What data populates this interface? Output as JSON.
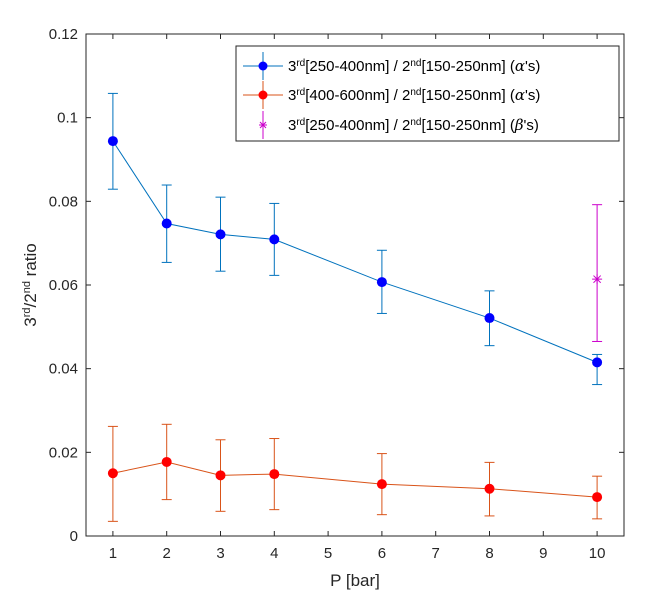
{
  "chart_data": {
    "type": "line",
    "xlabel": "P [bar]",
    "ylabel": {
      "base1": "3",
      "sup1": "rd",
      "mid": "/2",
      "sup2": "nd",
      "tail": " ratio"
    },
    "xlim": [
      0.5,
      10.5
    ],
    "ylim": [
      0,
      0.12
    ],
    "xticks": [
      1,
      2,
      3,
      4,
      5,
      6,
      7,
      8,
      9,
      10
    ],
    "yticks": [
      0,
      0.02,
      0.04,
      0.06,
      0.08,
      0.1,
      0.12
    ],
    "ytick_labels": [
      "0",
      "0.02",
      "0.04",
      "0.06",
      "0.08",
      "0.1",
      "0.12"
    ],
    "grid": false,
    "legend_position": "top-right",
    "series": [
      {
        "name": "3rd[250-400nm] / 2nd[150-250nm] (α's)",
        "legend_parts": {
          "a": "3",
          "b": "rd",
          "c": "[250-400nm] / 2",
          "d": "nd",
          "e": "[150-250nm] (",
          "greek": "α",
          "f": "'s)"
        },
        "line_color": "#0072BD",
        "marker_color": "#0000FF",
        "marker": "circle",
        "x": [
          1,
          2,
          3,
          4,
          6,
          8,
          10
        ],
        "y": [
          0.0944,
          0.0747,
          0.0721,
          0.0709,
          0.0607,
          0.0521,
          0.0415
        ],
        "err_low": [
          0.0829,
          0.0654,
          0.0633,
          0.0623,
          0.0532,
          0.0455,
          0.0362
        ],
        "err_high": [
          0.1058,
          0.0839,
          0.081,
          0.0795,
          0.0683,
          0.0586,
          0.0434
        ]
      },
      {
        "name": "3rd[400-600nm] / 2nd[150-250nm] (α's)",
        "legend_parts": {
          "a": "3",
          "b": "rd",
          "c": "[400-600nm] / 2",
          "d": "nd",
          "e": "[150-250nm] (",
          "greek": "α",
          "f": "'s)"
        },
        "line_color": "#D95319",
        "marker_color": "#FF0000",
        "marker": "circle",
        "x": [
          1,
          2,
          3,
          4,
          6,
          8,
          10
        ],
        "y": [
          0.015,
          0.0177,
          0.0145,
          0.0148,
          0.0124,
          0.0113,
          0.0093
        ],
        "err_low": [
          0.0035,
          0.0087,
          0.0059,
          0.0063,
          0.0051,
          0.0048,
          0.0041
        ],
        "err_high": [
          0.0262,
          0.0267,
          0.023,
          0.0233,
          0.0197,
          0.0176,
          0.0143
        ]
      },
      {
        "name": "3rd[250-400nm] / 2nd[150-250nm] (β's)",
        "legend_parts": {
          "a": "3",
          "b": "rd",
          "c": "[250-400nm] / 2",
          "d": "nd",
          "e": "[150-250nm] (",
          "greek": "β",
          "f": "'s)"
        },
        "line_color": "#CC00CC",
        "marker_color": "#CC00CC",
        "marker": "asterisk",
        "x": [
          10
        ],
        "y": [
          0.0614
        ],
        "err_low": [
          0.0465
        ],
        "err_high": [
          0.0792
        ]
      }
    ]
  }
}
